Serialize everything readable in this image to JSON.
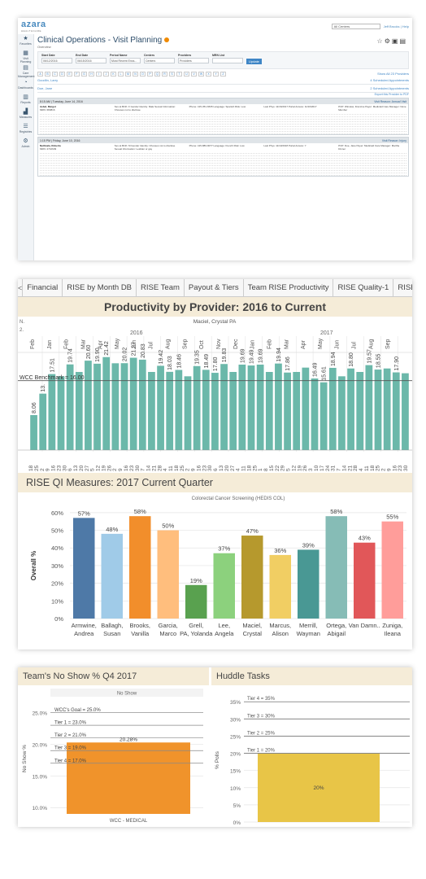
{
  "azara": {
    "logo": "azara",
    "logo_sub": "HEALTHCARE",
    "top_select": "All Centers",
    "user_links": "Jeff Brooks | Help",
    "sidebar": [
      {
        "icon": "star-icon",
        "glyph": "★",
        "label": "Favorites"
      },
      {
        "icon": "calendar-icon",
        "glyph": "▦",
        "label": "Visit Planning"
      },
      {
        "icon": "care-icon",
        "glyph": "▤",
        "label": "Care Management"
      },
      {
        "icon": "dashboard-icon",
        "glyph": "◔",
        "label": "Dashboards"
      },
      {
        "icon": "report-icon",
        "glyph": "▥",
        "label": "Reports"
      },
      {
        "icon": "measures-icon",
        "glyph": "▟",
        "label": "Measures"
      },
      {
        "icon": "registries-icon",
        "glyph": "☰",
        "label": "Registries"
      },
      {
        "icon": "admin-icon",
        "glyph": "⚙",
        "label": "Admin"
      }
    ],
    "title": "Clinical Operations - Visit Planning",
    "subtitle": "Overview",
    "filters": [
      {
        "label": "Start Date",
        "value": "06/12/2016"
      },
      {
        "label": "End Date",
        "value": "06/15/2016"
      },
      {
        "label": "Period Name",
        "value": "Most Recent Encs..."
      },
      {
        "label": "Centers",
        "value": "Centers"
      },
      {
        "label": "Providers",
        "value": "Providers"
      },
      {
        "label": "MRN List",
        "value": ""
      }
    ],
    "update_label": "Update",
    "alphabet": [
      "A",
      "B",
      "C",
      "D",
      "E",
      "F",
      "G",
      "H",
      "I",
      "J",
      "K",
      "L",
      "M",
      "N",
      "O",
      "P",
      "Q",
      "R",
      "S",
      "T",
      "U",
      "V",
      "W",
      "X",
      "Y",
      "Z"
    ],
    "show_all": "Show All 23 Providers",
    "providers": [
      {
        "name": "Goodlin, Larry",
        "count": "4 Scheduled Appointments"
      },
      {
        "name": "Doe, Jane",
        "count": "2 Scheduled Appointments"
      }
    ],
    "export_link": "Export this Provider to PDF",
    "appointments": [
      {
        "time": "8:15 AM | Tuesday, June 14, 2016",
        "reason": "Visit Reason: Annual Visit",
        "patient": "Aebel, Margot",
        "mrn": "MRN: 683816",
        "col2": "Sex at Birth: F  Gender Identity: Male  Sexual Information: Chooses not to disclose",
        "col3": "Phone: 415-351-6635  Language: Spanish  Risk: Low",
        "col4": "Last Phys: 11/16/2017  Portal Access: 11/16/2017",
        "col5": "PCP: Winslow, Francine  Payer: Medicaid  Care Manager: None Member"
      },
      {
        "time": "1:15 PM | Friday, June 10, 2016",
        "reason": "Visit Reason: Injury",
        "patient": "Nathnala, Roberta",
        "mrn": "MRN: 2710639",
        "col2": "Sex at Birth: M  Gender Identity: Chooses not to disclose  Sexual Information: Lesbian or gay",
        "col3": "Phone: 415-883-9077  Language: French  Risk: Low",
        "col4": "Last Phys: 11/10/2018  Portal Access: Y",
        "col5": "PCP: Doe, Jane  Payer: Medicaid  Care Manager: Martha Dinner"
      }
    ]
  },
  "dashboard": {
    "tabs": [
      "<",
      "Financial",
      "RISE by Month DB",
      "RISE Team",
      "Payout & Tiers",
      "Team RISE Productivity",
      "RISE Quality-1",
      "RISE Quality-2"
    ],
    "productivity_title": "Productivity by Provider: 2016 to Current",
    "qi_title": "RISE QI Measures: 2017 Current Quarter",
    "noshow_title": "Team's No Show % Q4 2017",
    "huddle_title": "Huddle Tasks"
  },
  "chart_data": [
    {
      "type": "bar",
      "title": "Productivity by Provider: 2016 to Current",
      "provider": "Maciel, Crystal PA",
      "left_axis_labels": [
        "N.",
        "2."
      ],
      "years": [
        "2016",
        "2017"
      ],
      "months": [
        "Feb",
        "Jan",
        "Feb",
        "Mar",
        "Apr",
        "May",
        "Jun",
        "Jul",
        "Aug",
        "Sep",
        "Oct",
        "Nov",
        "Dec",
        "Jan",
        "Feb",
        "Mar",
        "Apr",
        "May",
        "Jun",
        "Jul",
        "Aug",
        "Sep"
      ],
      "x": [
        "18",
        "25",
        "2",
        "9",
        "16",
        "23",
        "30",
        "6",
        "13",
        "20",
        "27",
        "5",
        "12",
        "19",
        "26",
        "2",
        "9",
        "16",
        "23",
        "30",
        "7",
        "14",
        "21",
        "28",
        "4",
        "11",
        "18",
        "25",
        "2",
        "9",
        "16",
        "23",
        "30",
        "6",
        "13",
        "20",
        "27",
        "4",
        "11",
        "18",
        "25",
        "1",
        "8",
        "15",
        "22",
        "29",
        "5",
        "12",
        "19",
        "26",
        "3",
        "10",
        "17",
        "24",
        "31",
        "7",
        "14",
        "21",
        "28",
        "4",
        "11",
        "18",
        "25",
        "2",
        "9",
        "16",
        "23",
        "30"
      ],
      "values": [
        8.06,
        13,
        17.51,
        17,
        19.74,
        18,
        20.6,
        19.9,
        21.42,
        20,
        20.02,
        21.27,
        20.83,
        18,
        19.42,
        18.03,
        18.46,
        17,
        19.35,
        18.49,
        17.8,
        19.83,
        18,
        19.69,
        19.49,
        19.69,
        18,
        19.94,
        17.86,
        18,
        19,
        16.49,
        15.61,
        18.94,
        17,
        18.8,
        18,
        19.57,
        18.55,
        18.8,
        17.9,
        17.7
      ],
      "labels": [
        "8.06",
        "13.",
        "17.51",
        "",
        "19.74",
        "",
        "20.60",
        "19.90",
        "21.42",
        "",
        "20.02",
        "21.27",
        "20.83",
        "",
        "19.42",
        "18.03",
        "18.46",
        "",
        "19.35",
        "18.49",
        "17.80",
        "19.83",
        "",
        "19.69",
        "19.49",
        "19.69",
        "",
        "19.94",
        "17.86",
        "",
        "",
        "16.49",
        "15.61",
        "18.94",
        "",
        "18.80",
        "",
        "19.57",
        "18.55",
        "",
        "17.90",
        ""
      ],
      "benchmark": {
        "label": "WCC Benchmark = 16.00",
        "value": 16
      },
      "ylim": [
        0,
        24
      ]
    },
    {
      "type": "bar",
      "title": "RISE QI Measures: 2017 Current Quarter",
      "subtitle": "Colorectal Cancer Screening (HEDIS COL)",
      "ylabel": "Overall %",
      "yticks": [
        "0%",
        "10%",
        "20%",
        "30%",
        "40%",
        "50%",
        "60%"
      ],
      "categories": [
        "Armwine, Andrea",
        "Ballagh, Susan",
        "Brooks, Vanilla",
        "Garcia, Marco",
        "Grell, PA, Yolanda",
        "Lee, Angela",
        "Maciel, Crystal",
        "Marcus, Alison",
        "Merrill, Wayman",
        "Ortega, Abigail",
        "Van Damn..",
        "Zuniga, Ileana"
      ],
      "values": [
        57,
        48,
        58,
        50,
        19,
        37,
        47,
        36,
        39,
        58,
        43,
        55
      ],
      "labels": [
        "57%",
        "48%",
        "58%",
        "50%",
        "19%",
        "37%",
        "47%",
        "36%",
        "39%",
        "58%",
        "43%",
        "55%"
      ],
      "colors": [
        "#4e79a7",
        "#a0cbe8",
        "#f28e2b",
        "#ffbe7d",
        "#59a14f",
        "#8cd17d",
        "#b6992d",
        "#f1ce63",
        "#499894",
        "#86bcb6",
        "#e15759",
        "#ff9d9a"
      ],
      "ylim": [
        0,
        65
      ]
    },
    {
      "type": "bar",
      "title": "Team's No Show % Q4 2017",
      "subtitle": "No Show",
      "ylabel": "No Show %",
      "yticks": [
        "10.0%",
        "15.0%",
        "20.0%",
        "25.0%"
      ],
      "categories": [
        "WCC - MEDICAL"
      ],
      "values": [
        20.28
      ],
      "labels": [
        "20.28%"
      ],
      "reference_lines": [
        {
          "label": "WCC's Goal = 25.0%",
          "value": 25.0
        },
        {
          "label": "Tier 1 = 23.0%",
          "value": 23.0
        },
        {
          "label": "Tier 2 = 21.0%",
          "value": 21.0
        },
        {
          "label": "Tier 3 = 19.0%",
          "value": 19.0
        },
        {
          "label": "Tier 4 = 17.0%",
          "value": 17.0
        }
      ],
      "ylim": [
        9,
        27
      ]
    },
    {
      "type": "bar",
      "title": "Huddle Tasks",
      "ylabel": "% Polls",
      "yticks": [
        "0%",
        "5%",
        "10%",
        "15%",
        "20%",
        "25%",
        "30%",
        "35%"
      ],
      "values": [
        20
      ],
      "labels": [
        "20%"
      ],
      "reference_lines": [
        {
          "label": "Tier 4 = 35%",
          "value": 35
        },
        {
          "label": "Tier 3 = 30%",
          "value": 30
        },
        {
          "label": "Tier 2 = 25%",
          "value": 25
        },
        {
          "label": "Tier 1 = 20%",
          "value": 20
        }
      ],
      "ylim": [
        0,
        36
      ]
    }
  ]
}
